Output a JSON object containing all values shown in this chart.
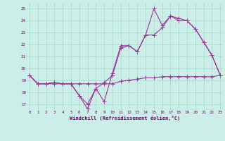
{
  "background_color": "#cceee8",
  "grid_color": "#aaddcc",
  "line_color": "#993399",
  "xlabel": "Windchill (Refroidissement éolien,°C)",
  "yticks": [
    17,
    18,
    19,
    20,
    21,
    22,
    23,
    24,
    25
  ],
  "xticks": [
    0,
    1,
    2,
    3,
    4,
    5,
    6,
    7,
    8,
    9,
    10,
    11,
    12,
    13,
    14,
    15,
    16,
    17,
    18,
    19,
    20,
    21,
    22,
    23
  ],
  "xlim": [
    -0.3,
    23.3
  ],
  "ylim": [
    16.5,
    25.5
  ],
  "series1_x": [
    0,
    1,
    2,
    3,
    4,
    5,
    6,
    7,
    8,
    9,
    10,
    11,
    12,
    13,
    14,
    15,
    16,
    17,
    18,
    19,
    20,
    21,
    22,
    23
  ],
  "series1_y": [
    19.4,
    18.7,
    18.7,
    18.7,
    18.7,
    18.7,
    18.7,
    18.7,
    18.7,
    18.7,
    18.7,
    18.9,
    19.0,
    19.1,
    19.2,
    19.2,
    19.3,
    19.3,
    19.3,
    19.3,
    19.3,
    19.3,
    19.3,
    19.4
  ],
  "series2_x": [
    0,
    1,
    2,
    3,
    4,
    5,
    6,
    7,
    8,
    9,
    10,
    11,
    12,
    13,
    14,
    15,
    16,
    17,
    18,
    19,
    20,
    21,
    22,
    23
  ],
  "series2_y": [
    19.4,
    18.7,
    18.7,
    18.8,
    18.7,
    18.7,
    17.7,
    17.0,
    18.3,
    18.8,
    19.4,
    21.7,
    21.9,
    21.4,
    22.8,
    22.8,
    23.4,
    24.4,
    24.0,
    24.0,
    23.3,
    22.2,
    21.1,
    19.4
  ],
  "series3_x": [
    0,
    1,
    2,
    3,
    4,
    5,
    6,
    7,
    8,
    9,
    10,
    11,
    12,
    13,
    14,
    15,
    16,
    17,
    18,
    19,
    20,
    21,
    22,
    23
  ],
  "series3_y": [
    19.4,
    18.7,
    18.7,
    18.8,
    18.7,
    18.7,
    17.7,
    16.6,
    18.3,
    17.2,
    19.6,
    21.9,
    21.9,
    21.4,
    22.8,
    25.0,
    23.6,
    24.4,
    24.2,
    24.0,
    23.3,
    22.2,
    21.1,
    19.4
  ]
}
